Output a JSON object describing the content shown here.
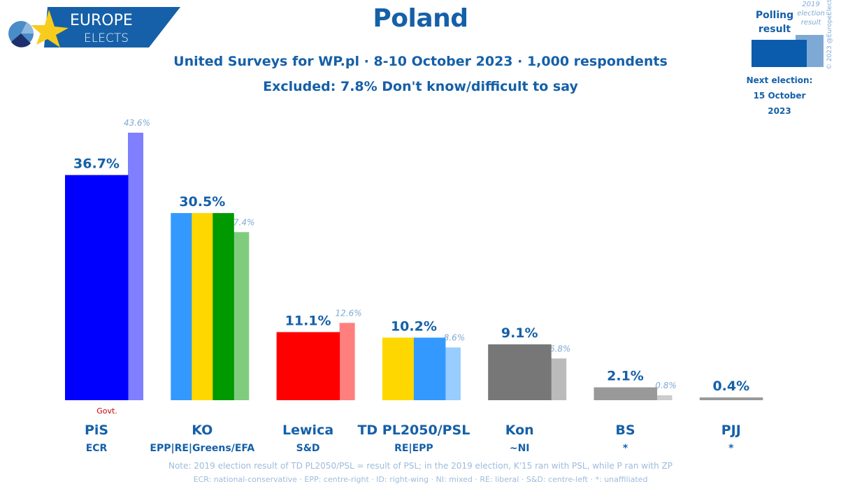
{
  "header": {
    "logo_text_1": "EUROPE",
    "logo_text_2": "ELECTS",
    "title": "Poland",
    "subtitle_1": "United Surveys for WP.pl · 8-10 October 2023 · 1,000 respondents",
    "subtitle_2": "Excluded: 7.8% Don't know/difficult to say"
  },
  "legend": {
    "polling_label": "Polling result",
    "previous_label": "2019 election result",
    "copyright": "© 2023 @EuropeElects",
    "next_election_label": "Next election:",
    "next_election_date": "15 October 2023",
    "colors": {
      "poll": "#0b5cad",
      "previous": "#7fa9d5"
    }
  },
  "footer": {
    "note": "Note: 2019 election result of TD PL2050/PSL = result of PSL; in the 2019 election, K'15 ran with PSL, while P ran with ZP",
    "groups": "ECR: national-conservative · EPP: centre-right · ID: right-wing · NI: mixed · RE: liberal · S&D: centre-left · *: unaffiliated"
  },
  "chart_data": {
    "type": "bar",
    "title": "Poland",
    "xlabel": "",
    "ylabel": "",
    "ylim": [
      0,
      45
    ],
    "grid": false,
    "categories": [
      "PiS",
      "KO",
      "Lewica",
      "TD PL2050/PSL",
      "Kon",
      "BS",
      "PJJ"
    ],
    "groups": [
      "ECR",
      "EPP|RE|Greens/EFA",
      "S&D",
      "RE|EPP",
      "~NI",
      "*",
      "*"
    ],
    "annotations": [
      {
        "category": "PiS",
        "text": "Govt."
      }
    ],
    "series": [
      {
        "name": "Polling result",
        "values": [
          36.7,
          30.5,
          11.1,
          10.2,
          9.1,
          2.1,
          0.4
        ],
        "labels": [
          "36.7%",
          "30.5%",
          "11.1%",
          "10.2%",
          "9.1%",
          "2.1%",
          "0.4%"
        ]
      },
      {
        "name": "2019 election result",
        "values": [
          43.6,
          27.4,
          12.6,
          8.6,
          6.8,
          0.8,
          null
        ],
        "labels": [
          "43.6%",
          "27.4%",
          "12.6%",
          "8.6%",
          "6.8%",
          "0.8%",
          ""
        ]
      }
    ],
    "bar_colors": {
      "poll": [
        [
          "#0000ff"
        ],
        [
          "#3399ff",
          "#ffd700",
          "#009900"
        ],
        [
          "#ff0000"
        ],
        [
          "#ffd700",
          "#3399ff"
        ],
        [
          "#777777"
        ],
        [
          "#999999"
        ],
        [
          "#999999"
        ]
      ],
      "previous": [
        [
          "#7f7fff"
        ],
        [
          "#ffe680",
          "#7fcc7f"
        ],
        [
          "#ff7f7f"
        ],
        [
          "#99ccff"
        ],
        [
          "#bbbbbb"
        ],
        [
          "#cccccc"
        ],
        []
      ]
    },
    "label_color": "#1560a8",
    "prev_label_color": "#7fa9d5",
    "annotation_color": "#cc0000"
  }
}
